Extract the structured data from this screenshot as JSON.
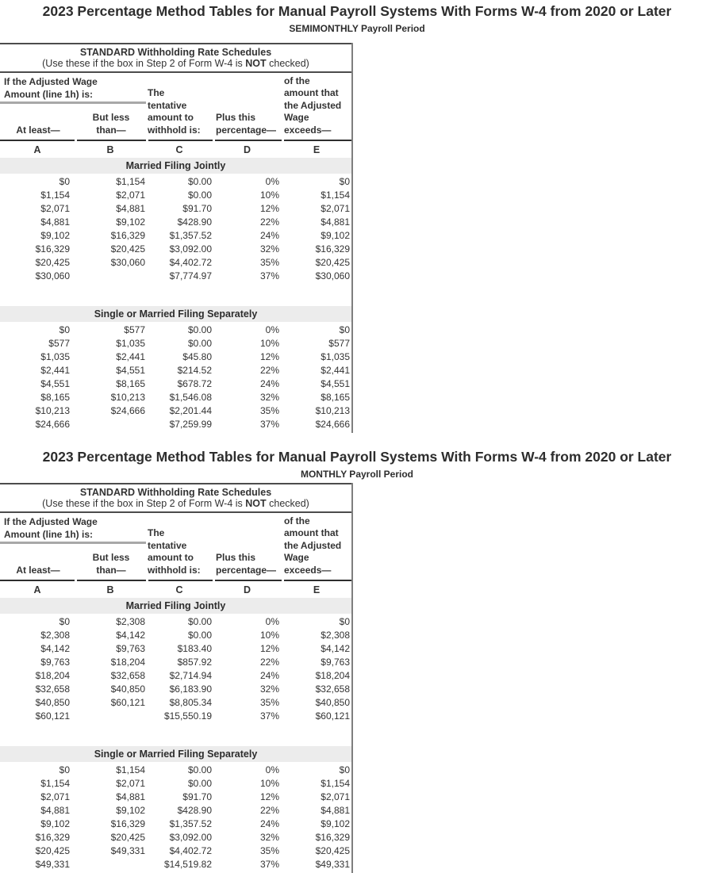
{
  "colors": {
    "text": "#333333",
    "band_background": "#ececec",
    "rule_dark": "#4c4c4c",
    "header_rule": "#2e2e2e",
    "divider_gray": "#7e7e7e",
    "wage_underline": "#a8a8a8"
  },
  "sections": [
    {
      "title": "2023 Percentage Method Tables for Manual Payroll Systems With Forms W-4 from 2020 or Later",
      "period": "SEMIMONTHLY Payroll Period",
      "schedule_heading": "STANDARD Withholding Rate Schedules",
      "note_prefix": "(Use these if the box in Step 2 of Form W-4 is ",
      "note_bold": "NOT",
      "note_suffix": " checked)",
      "wage_header": [
        "If the Adjusted Wage",
        "Amount (line 1h) is:"
      ],
      "col_a": [
        "At least—"
      ],
      "col_b": [
        "But less",
        "than—"
      ],
      "col_c": [
        "The",
        "tentative",
        "amount to",
        "withhold is:"
      ],
      "col_d": [
        "Plus this",
        "percentage—"
      ],
      "col_e": [
        "of the",
        "amount that",
        "the Adjusted",
        "Wage",
        "exceeds—"
      ],
      "letters": [
        "A",
        "B",
        "C",
        "D",
        "E"
      ],
      "tables": [
        {
          "band": "Married Filing Jointly",
          "rows": [
            [
              "$0",
              "$1,154",
              "$0.00",
              "0%",
              "$0"
            ],
            [
              "$1,154",
              "$2,071",
              "$0.00",
              "10%",
              "$1,154"
            ],
            [
              "$2,071",
              "$4,881",
              "$91.70",
              "12%",
              "$2,071"
            ],
            [
              "$4,881",
              "$9,102",
              "$428.90",
              "22%",
              "$4,881"
            ],
            [
              "$9,102",
              "$16,329",
              "$1,357.52",
              "24%",
              "$9,102"
            ],
            [
              "$16,329",
              "$20,425",
              "$3,092.00",
              "32%",
              "$16,329"
            ],
            [
              "$20,425",
              "$30,060",
              "$4,402.72",
              "35%",
              "$20,425"
            ],
            [
              "$30,060",
              "",
              "$7,774.97",
              "37%",
              "$30,060"
            ]
          ]
        },
        {
          "band": "Single or Married Filing Separately",
          "rows": [
            [
              "$0",
              "$577",
              "$0.00",
              "0%",
              "$0"
            ],
            [
              "$577",
              "$1,035",
              "$0.00",
              "10%",
              "$577"
            ],
            [
              "$1,035",
              "$2,441",
              "$45.80",
              "12%",
              "$1,035"
            ],
            [
              "$2,441",
              "$4,551",
              "$214.52",
              "22%",
              "$2,441"
            ],
            [
              "$4,551",
              "$8,165",
              "$678.72",
              "24%",
              "$4,551"
            ],
            [
              "$8,165",
              "$10,213",
              "$1,546.08",
              "32%",
              "$8,165"
            ],
            [
              "$10,213",
              "$24,666",
              "$2,201.44",
              "35%",
              "$10,213"
            ],
            [
              "$24,666",
              "",
              "$7,259.99",
              "37%",
              "$24,666"
            ]
          ]
        }
      ]
    },
    {
      "title": "2023 Percentage Method Tables for Manual Payroll Systems With Forms W-4 from 2020 or Later",
      "period": "MONTHLY Payroll Period",
      "schedule_heading": "STANDARD Withholding Rate Schedules",
      "note_prefix": "(Use these if the box in Step 2 of Form W-4 is ",
      "note_bold": "NOT",
      "note_suffix": " checked)",
      "wage_header": [
        "If the Adjusted Wage",
        "Amount (line 1h) is:"
      ],
      "col_a": [
        "At least—"
      ],
      "col_b": [
        "But less",
        "than—"
      ],
      "col_c": [
        "The",
        "tentative",
        "amount to",
        "withhold is:"
      ],
      "col_d": [
        "Plus this",
        "percentage—"
      ],
      "col_e": [
        "of the",
        "amount that",
        "the Adjusted",
        "Wage",
        "exceeds—"
      ],
      "letters": [
        "A",
        "B",
        "C",
        "D",
        "E"
      ],
      "tables": [
        {
          "band": "Married Filing Jointly",
          "rows": [
            [
              "$0",
              "$2,308",
              "$0.00",
              "0%",
              "$0"
            ],
            [
              "$2,308",
              "$4,142",
              "$0.00",
              "10%",
              "$2,308"
            ],
            [
              "$4,142",
              "$9,763",
              "$183.40",
              "12%",
              "$4,142"
            ],
            [
              "$9,763",
              "$18,204",
              "$857.92",
              "22%",
              "$9,763"
            ],
            [
              "$18,204",
              "$32,658",
              "$2,714.94",
              "24%",
              "$18,204"
            ],
            [
              "$32,658",
              "$40,850",
              "$6,183.90",
              "32%",
              "$32,658"
            ],
            [
              "$40,850",
              "$60,121",
              "$8,805.34",
              "35%",
              "$40,850"
            ],
            [
              "$60,121",
              "",
              "$15,550.19",
              "37%",
              "$60,121"
            ]
          ]
        },
        {
          "band": "Single or Married Filing Separately",
          "rows": [
            [
              "$0",
              "$1,154",
              "$0.00",
              "0%",
              "$0"
            ],
            [
              "$1,154",
              "$2,071",
              "$0.00",
              "10%",
              "$1,154"
            ],
            [
              "$2,071",
              "$4,881",
              "$91.70",
              "12%",
              "$2,071"
            ],
            [
              "$4,881",
              "$9,102",
              "$428.90",
              "22%",
              "$4,881"
            ],
            [
              "$9,102",
              "$16,329",
              "$1,357.52",
              "24%",
              "$9,102"
            ],
            [
              "$16,329",
              "$20,425",
              "$3,092.00",
              "32%",
              "$16,329"
            ],
            [
              "$20,425",
              "$49,331",
              "$4,402.72",
              "35%",
              "$20,425"
            ],
            [
              "$49,331",
              "",
              "$14,519.82",
              "37%",
              "$49,331"
            ]
          ]
        }
      ]
    }
  ]
}
